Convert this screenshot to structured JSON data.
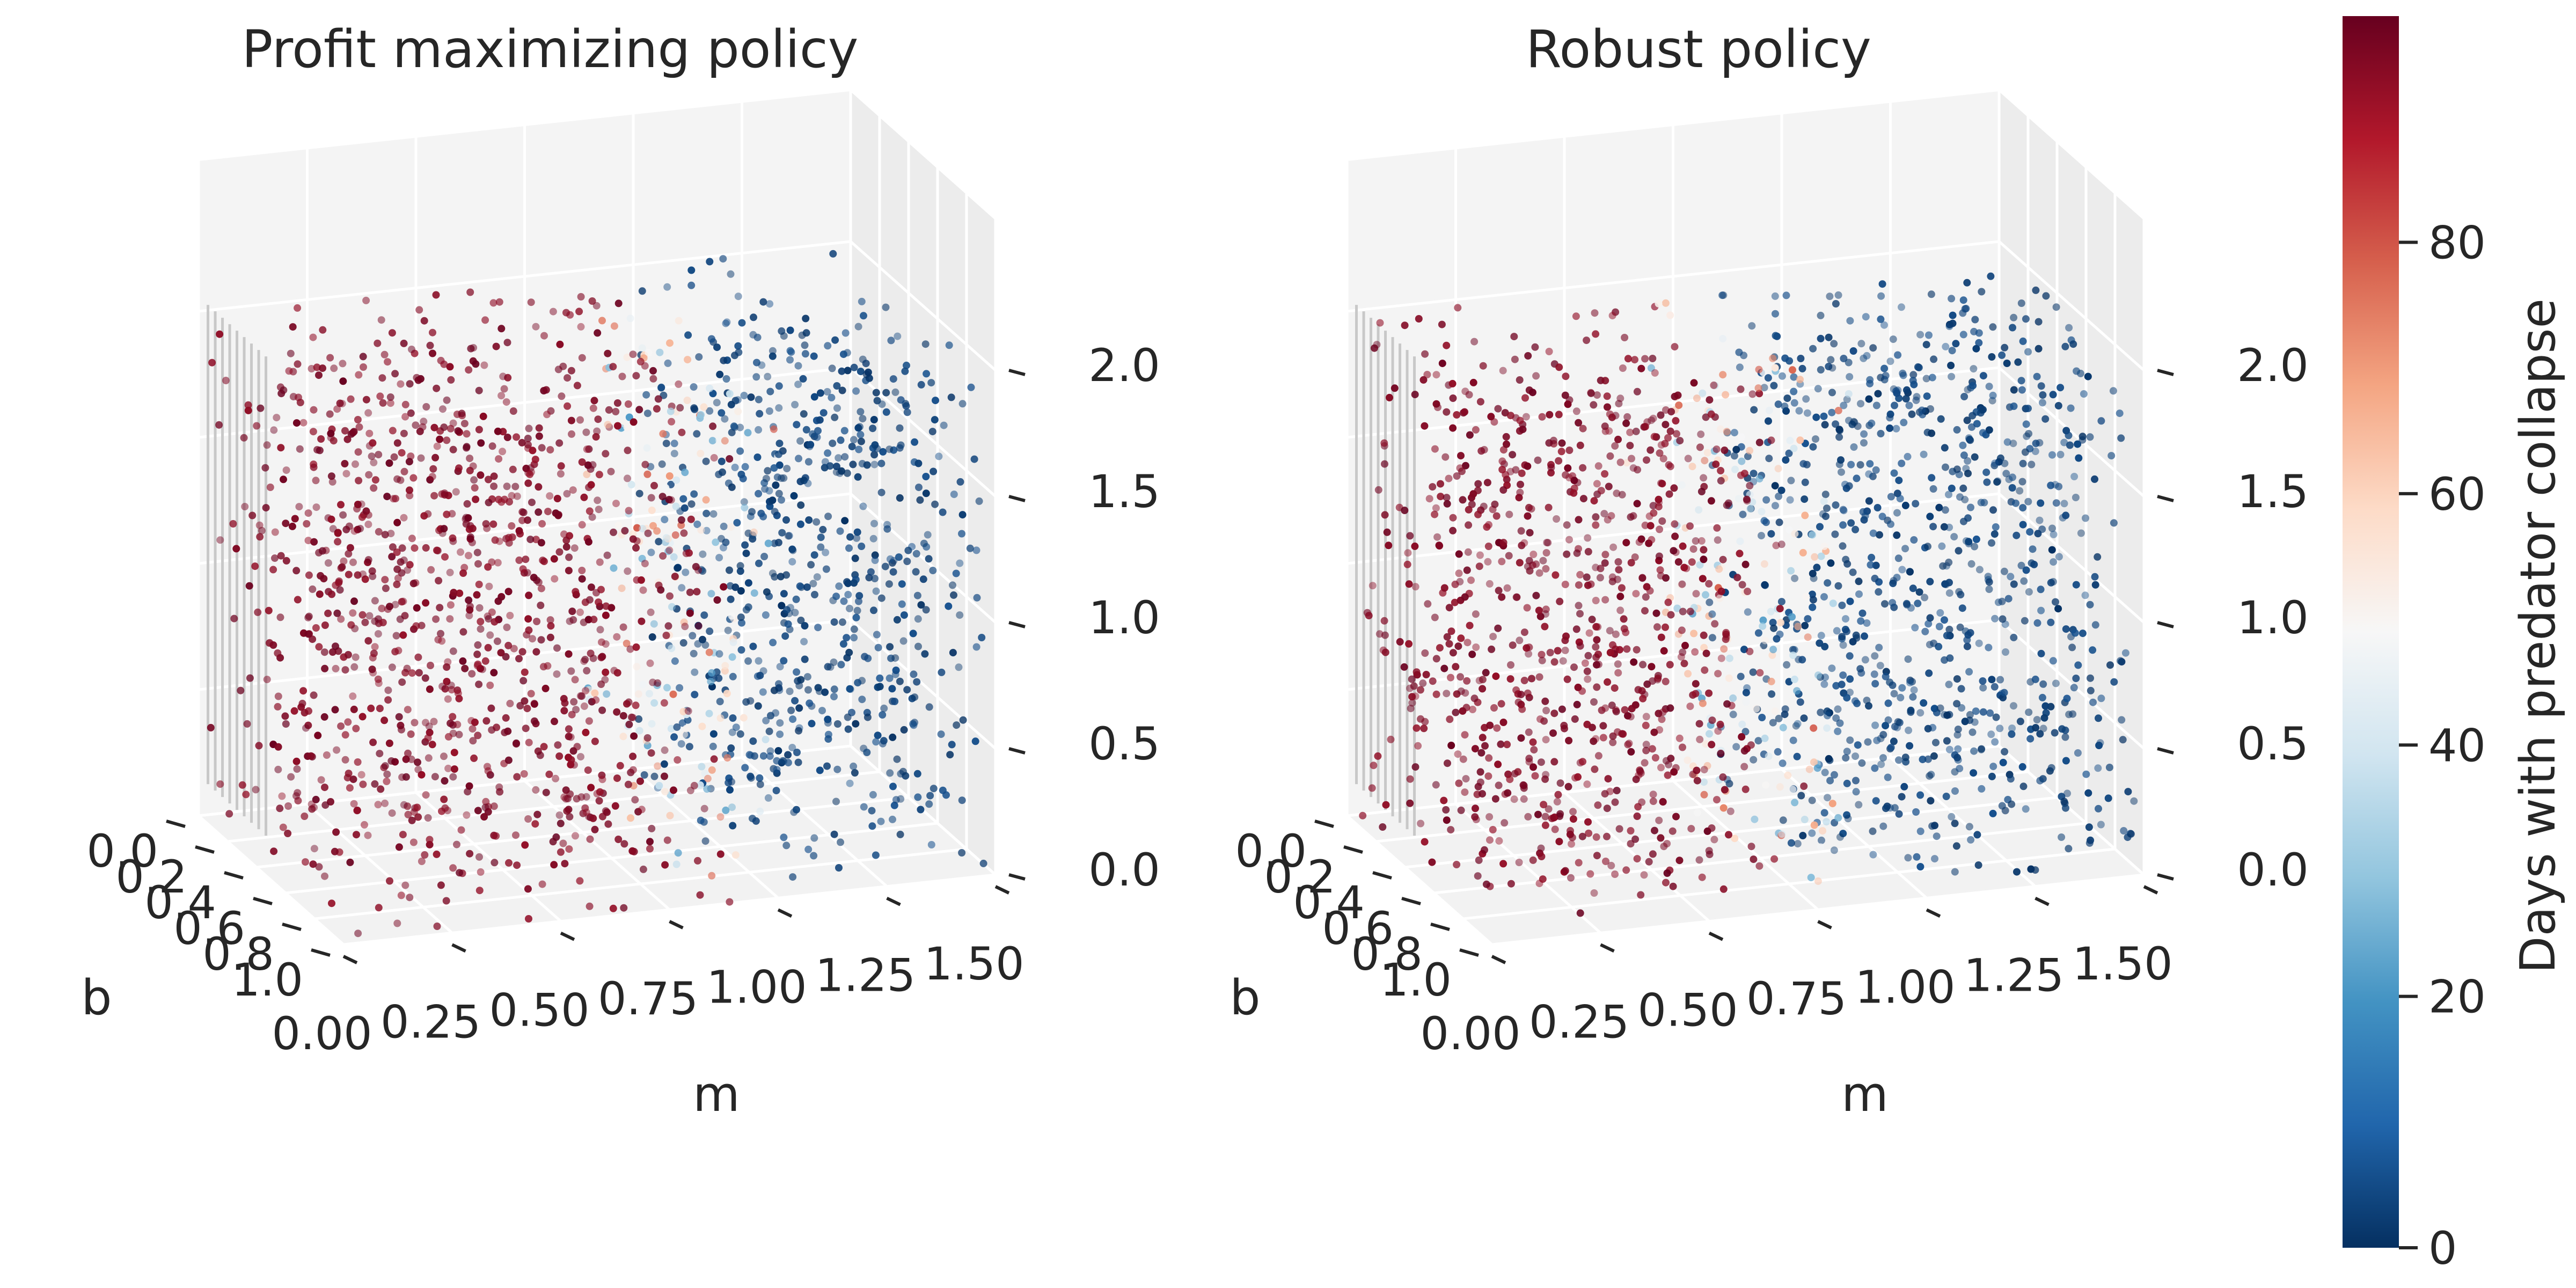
{
  "chart_data": [
    {
      "type": "scatter",
      "title": "Profit maximizing policy",
      "xlabel": "m",
      "ylabel": "b",
      "zlabel": "",
      "x_ticks": [
        "0.00",
        "0.25",
        "0.50",
        "0.75",
        "1.00",
        "1.25",
        "1.50"
      ],
      "y_ticks": [
        "0.0",
        "0.2",
        "0.4",
        "0.6",
        "0.8",
        "1.0"
      ],
      "z_ticks": [
        "0.0",
        "0.5",
        "1.0",
        "1.5",
        "2.0"
      ],
      "xlim": [
        0,
        1.5
      ],
      "ylim": [
        0,
        1.0
      ],
      "zlim": [
        0,
        2.0
      ],
      "color_variable": "Days with predator collapse",
      "value_pattern": "collapse days ~95 for m below about 0.9 and ~0 for m above about 1.0, with a narrow transition band near m = 0.9-1.0",
      "transition_m": 0.93,
      "point_count": 2000
    },
    {
      "type": "scatter",
      "title": "Robust policy",
      "xlabel": "m",
      "ylabel": "b",
      "zlabel": "",
      "x_ticks": [
        "0.00",
        "0.25",
        "0.50",
        "0.75",
        "1.00",
        "1.25",
        "1.50"
      ],
      "y_ticks": [
        "0.0",
        "0.2",
        "0.4",
        "0.6",
        "0.8",
        "1.0"
      ],
      "z_ticks": [
        "0.0",
        "0.5",
        "1.0",
        "1.5",
        "2.0"
      ],
      "xlim": [
        0,
        1.5
      ],
      "ylim": [
        0,
        1.0
      ],
      "zlim": [
        0,
        2.0
      ],
      "color_variable": "Days with predator collapse",
      "value_pattern": "collapse days ~95 for m below about 0.7 and ~0 for m above about 0.8, with a narrow transition band near m = 0.7-0.8",
      "transition_m": 0.75,
      "point_count": 2000
    }
  ],
  "colorbar": {
    "label": "Days with predator collapse",
    "ticks": [
      "0",
      "20",
      "40",
      "60",
      "80"
    ],
    "tick_values": [
      0,
      20,
      40,
      60,
      80
    ],
    "range": [
      0,
      98
    ],
    "colormap": "RdBu_r",
    "colors": [
      "#053061",
      "#2166ac",
      "#4393c3",
      "#92c5de",
      "#d1e5f0",
      "#f7f7f7",
      "#fddbc7",
      "#f4a582",
      "#d6604d",
      "#b2182b",
      "#67001f"
    ]
  }
}
